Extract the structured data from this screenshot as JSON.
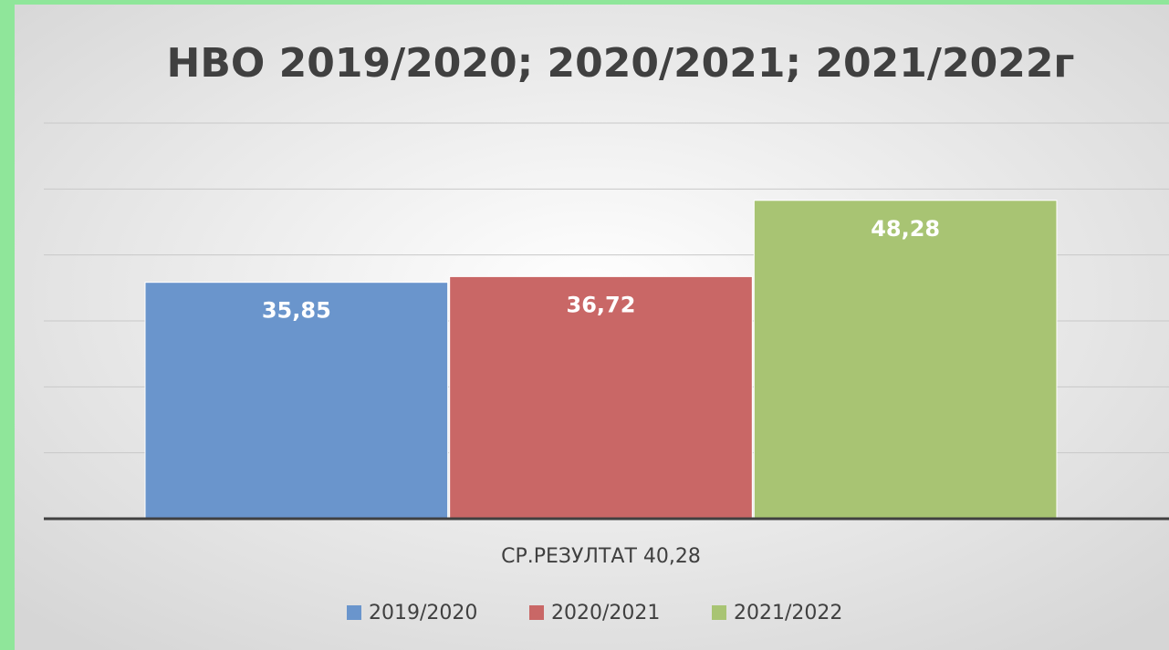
{
  "chart_data": {
    "type": "bar",
    "title": "НВО 2019/2020; 2020/2021; 2021/2022г",
    "categories": [
      "СР.РЕЗУЛТАТ 40,28"
    ],
    "series": [
      {
        "name": "2019/2020",
        "color": "#6a95cc",
        "values": [
          35.85
        ],
        "value_labels": [
          "35,85"
        ]
      },
      {
        "name": "2020/2021",
        "color": "#c96766",
        "values": [
          36.72
        ],
        "value_labels": [
          "36,72"
        ]
      },
      {
        "name": "2021/2022",
        "color": "#a8c473",
        "values": [
          48.28
        ],
        "value_labels": [
          "48,28"
        ]
      }
    ],
    "ylim": [
      0,
      60
    ],
    "yticks": [
      0,
      10,
      20,
      30,
      40,
      50,
      60
    ],
    "grid": true,
    "legend": "bottom"
  }
}
